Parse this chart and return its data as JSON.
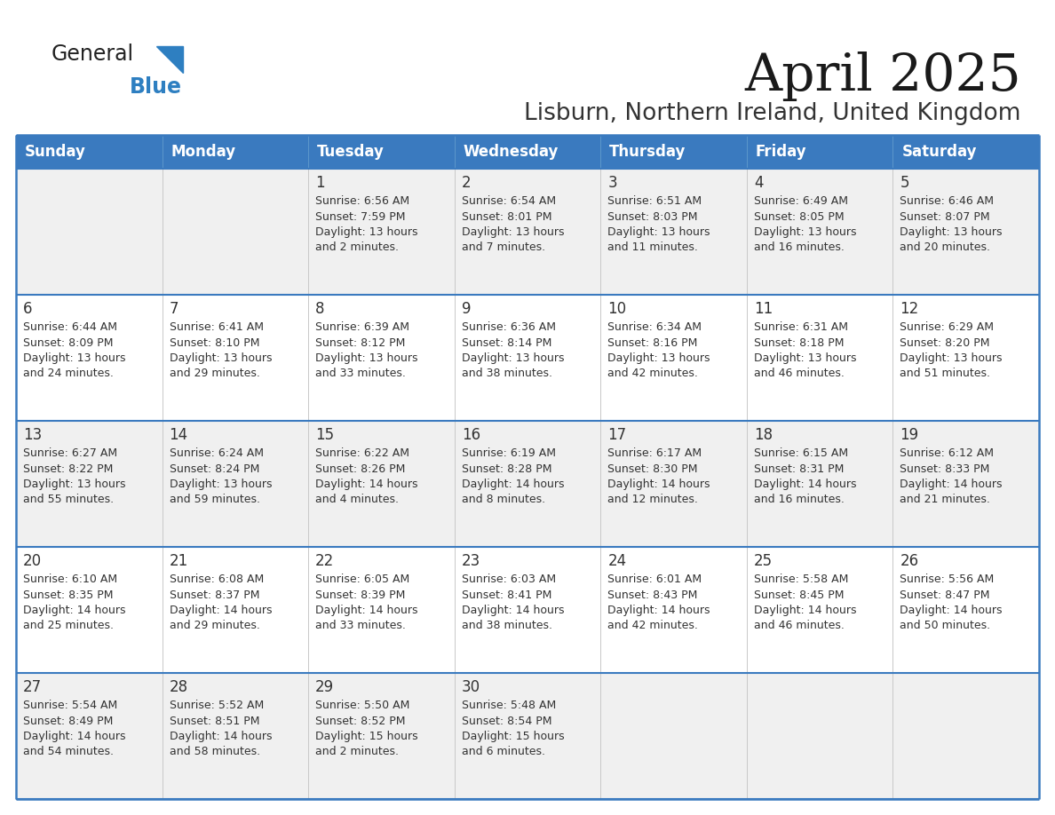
{
  "title": "April 2025",
  "subtitle": "Lisburn, Northern Ireland, United Kingdom",
  "header_bg_color": "#3a7abf",
  "header_text_color": "#ffffff",
  "row_bg_gray": "#f0f0f0",
  "row_bg_white": "#ffffff",
  "text_color": "#333333",
  "border_color": "#3a7abf",
  "logo_black": "#222222",
  "logo_blue": "#2e7fc1",
  "days_of_week": [
    "Sunday",
    "Monday",
    "Tuesday",
    "Wednesday",
    "Thursday",
    "Friday",
    "Saturday"
  ],
  "weeks": [
    [
      {
        "day": "",
        "info": ""
      },
      {
        "day": "",
        "info": ""
      },
      {
        "day": "1",
        "info": "Sunrise: 6:56 AM\nSunset: 7:59 PM\nDaylight: 13 hours\nand 2 minutes."
      },
      {
        "day": "2",
        "info": "Sunrise: 6:54 AM\nSunset: 8:01 PM\nDaylight: 13 hours\nand 7 minutes."
      },
      {
        "day": "3",
        "info": "Sunrise: 6:51 AM\nSunset: 8:03 PM\nDaylight: 13 hours\nand 11 minutes."
      },
      {
        "day": "4",
        "info": "Sunrise: 6:49 AM\nSunset: 8:05 PM\nDaylight: 13 hours\nand 16 minutes."
      },
      {
        "day": "5",
        "info": "Sunrise: 6:46 AM\nSunset: 8:07 PM\nDaylight: 13 hours\nand 20 minutes."
      }
    ],
    [
      {
        "day": "6",
        "info": "Sunrise: 6:44 AM\nSunset: 8:09 PM\nDaylight: 13 hours\nand 24 minutes."
      },
      {
        "day": "7",
        "info": "Sunrise: 6:41 AM\nSunset: 8:10 PM\nDaylight: 13 hours\nand 29 minutes."
      },
      {
        "day": "8",
        "info": "Sunrise: 6:39 AM\nSunset: 8:12 PM\nDaylight: 13 hours\nand 33 minutes."
      },
      {
        "day": "9",
        "info": "Sunrise: 6:36 AM\nSunset: 8:14 PM\nDaylight: 13 hours\nand 38 minutes."
      },
      {
        "day": "10",
        "info": "Sunrise: 6:34 AM\nSunset: 8:16 PM\nDaylight: 13 hours\nand 42 minutes."
      },
      {
        "day": "11",
        "info": "Sunrise: 6:31 AM\nSunset: 8:18 PM\nDaylight: 13 hours\nand 46 minutes."
      },
      {
        "day": "12",
        "info": "Sunrise: 6:29 AM\nSunset: 8:20 PM\nDaylight: 13 hours\nand 51 minutes."
      }
    ],
    [
      {
        "day": "13",
        "info": "Sunrise: 6:27 AM\nSunset: 8:22 PM\nDaylight: 13 hours\nand 55 minutes."
      },
      {
        "day": "14",
        "info": "Sunrise: 6:24 AM\nSunset: 8:24 PM\nDaylight: 13 hours\nand 59 minutes."
      },
      {
        "day": "15",
        "info": "Sunrise: 6:22 AM\nSunset: 8:26 PM\nDaylight: 14 hours\nand 4 minutes."
      },
      {
        "day": "16",
        "info": "Sunrise: 6:19 AM\nSunset: 8:28 PM\nDaylight: 14 hours\nand 8 minutes."
      },
      {
        "day": "17",
        "info": "Sunrise: 6:17 AM\nSunset: 8:30 PM\nDaylight: 14 hours\nand 12 minutes."
      },
      {
        "day": "18",
        "info": "Sunrise: 6:15 AM\nSunset: 8:31 PM\nDaylight: 14 hours\nand 16 minutes."
      },
      {
        "day": "19",
        "info": "Sunrise: 6:12 AM\nSunset: 8:33 PM\nDaylight: 14 hours\nand 21 minutes."
      }
    ],
    [
      {
        "day": "20",
        "info": "Sunrise: 6:10 AM\nSunset: 8:35 PM\nDaylight: 14 hours\nand 25 minutes."
      },
      {
        "day": "21",
        "info": "Sunrise: 6:08 AM\nSunset: 8:37 PM\nDaylight: 14 hours\nand 29 minutes."
      },
      {
        "day": "22",
        "info": "Sunrise: 6:05 AM\nSunset: 8:39 PM\nDaylight: 14 hours\nand 33 minutes."
      },
      {
        "day": "23",
        "info": "Sunrise: 6:03 AM\nSunset: 8:41 PM\nDaylight: 14 hours\nand 38 minutes."
      },
      {
        "day": "24",
        "info": "Sunrise: 6:01 AM\nSunset: 8:43 PM\nDaylight: 14 hours\nand 42 minutes."
      },
      {
        "day": "25",
        "info": "Sunrise: 5:58 AM\nSunset: 8:45 PM\nDaylight: 14 hours\nand 46 minutes."
      },
      {
        "day": "26",
        "info": "Sunrise: 5:56 AM\nSunset: 8:47 PM\nDaylight: 14 hours\nand 50 minutes."
      }
    ],
    [
      {
        "day": "27",
        "info": "Sunrise: 5:54 AM\nSunset: 8:49 PM\nDaylight: 14 hours\nand 54 minutes."
      },
      {
        "day": "28",
        "info": "Sunrise: 5:52 AM\nSunset: 8:51 PM\nDaylight: 14 hours\nand 58 minutes."
      },
      {
        "day": "29",
        "info": "Sunrise: 5:50 AM\nSunset: 8:52 PM\nDaylight: 15 hours\nand 2 minutes."
      },
      {
        "day": "30",
        "info": "Sunrise: 5:48 AM\nSunset: 8:54 PM\nDaylight: 15 hours\nand 6 minutes."
      },
      {
        "day": "",
        "info": ""
      },
      {
        "day": "",
        "info": ""
      },
      {
        "day": "",
        "info": ""
      }
    ]
  ]
}
